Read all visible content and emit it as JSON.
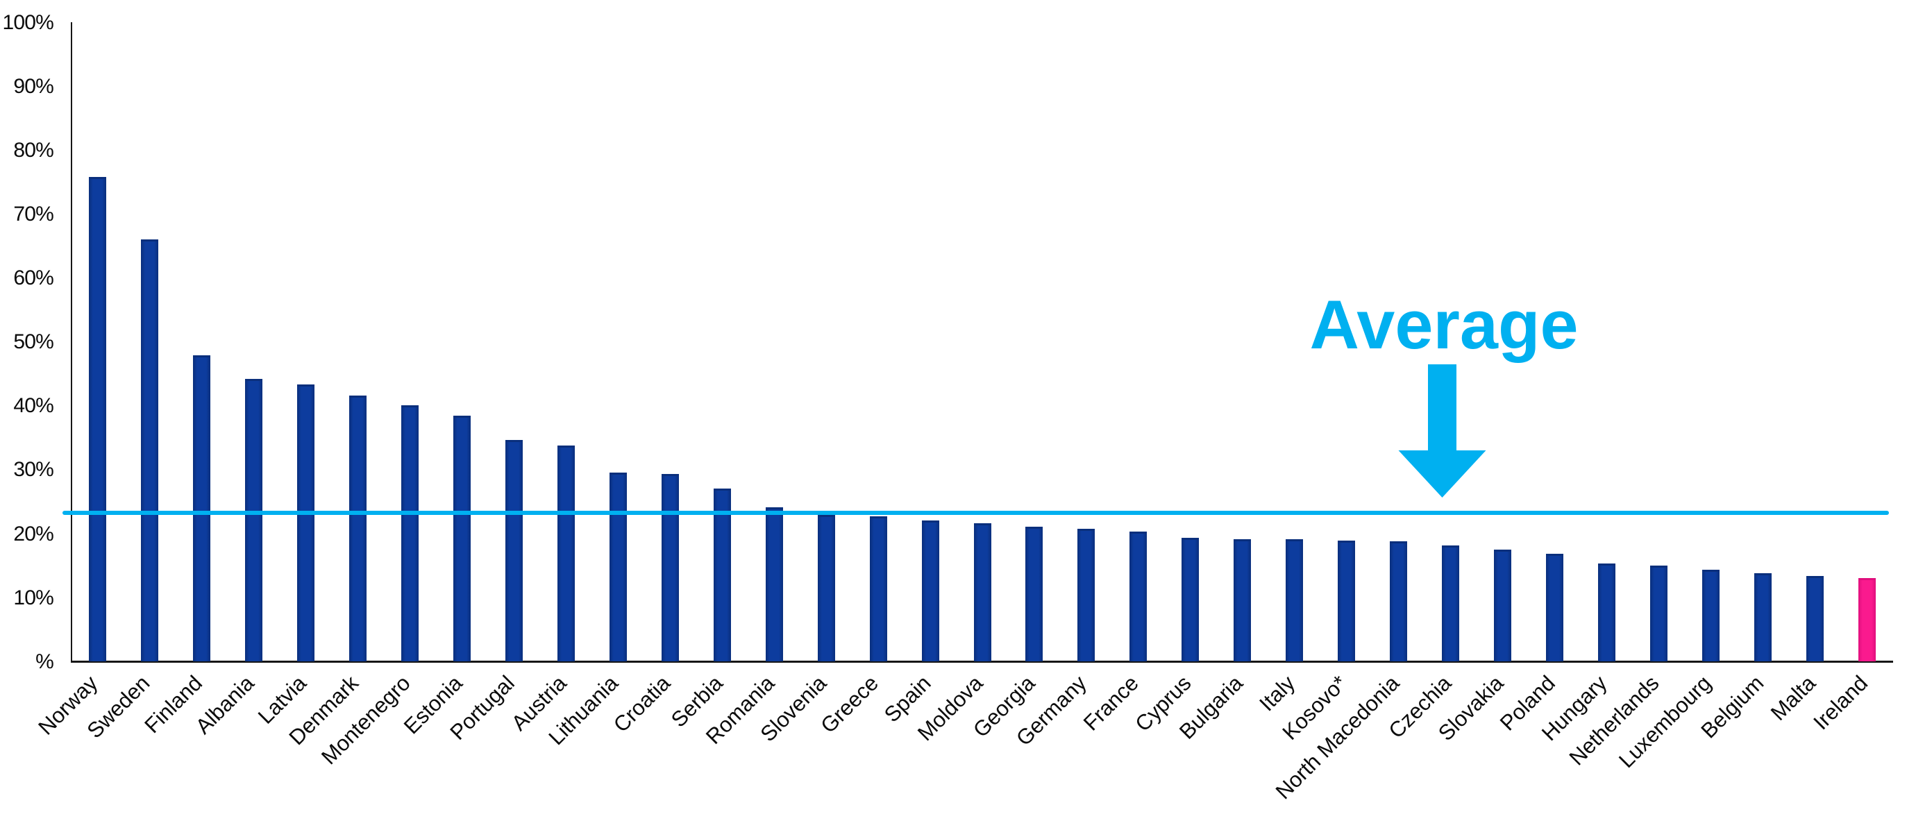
{
  "chart_data": {
    "type": "bar",
    "title": "",
    "xlabel": "",
    "ylabel": "",
    "categories": [
      "Norway",
      "Sweden",
      "Finland",
      "Albania",
      "Latvia",
      "Denmark",
      "Montenegro",
      "Estonia",
      "Portugal",
      "Austria",
      "Lithuania",
      "Croatia",
      "Serbia",
      "Romania",
      "Slovenia",
      "Greece",
      "Spain",
      "Moldova",
      "Georgia",
      "Germany",
      "France",
      "Cyprus",
      "Bulgaria",
      "Italy",
      "Kosovo*",
      "North Macedonia",
      "Czechia",
      "Slovakia",
      "Poland",
      "Hungary",
      "Netherlands",
      "Luxembourg",
      "Belgium",
      "Malta",
      "Ireland"
    ],
    "values": [
      75.8,
      66.0,
      47.9,
      44.2,
      43.3,
      41.6,
      40.1,
      38.5,
      34.7,
      33.8,
      29.6,
      29.4,
      27.1,
      24.1,
      22.9,
      22.7,
      22.1,
      21.6,
      21.1,
      20.8,
      20.3,
      19.4,
      19.1,
      19.1,
      18.9,
      18.8,
      18.2,
      17.5,
      16.9,
      15.3,
      15.0,
      14.4,
      13.8,
      13.4,
      13.1
    ],
    "highlight_category": "Ireland",
    "annotation": {
      "label": "Average",
      "value": 23.3
    },
    "ylim": [
      0,
      100
    ],
    "ytick_step": 10,
    "ytick_labels": [
      "%",
      "10%",
      "20%",
      "30%",
      "40%",
      "50%",
      "60%",
      "70%",
      "80%",
      "90%",
      "100%"
    ],
    "grid": "off",
    "legend": "none",
    "colors": {
      "bar": "#0d3c9e",
      "bar_edge": "#0a2f7c",
      "highlight_bar": "#fa1a8e",
      "highlight_bar_edge": "#e00f7d",
      "average": "#00b0f0",
      "axis": "#161616",
      "tick_text": "#0b0b0b"
    }
  }
}
